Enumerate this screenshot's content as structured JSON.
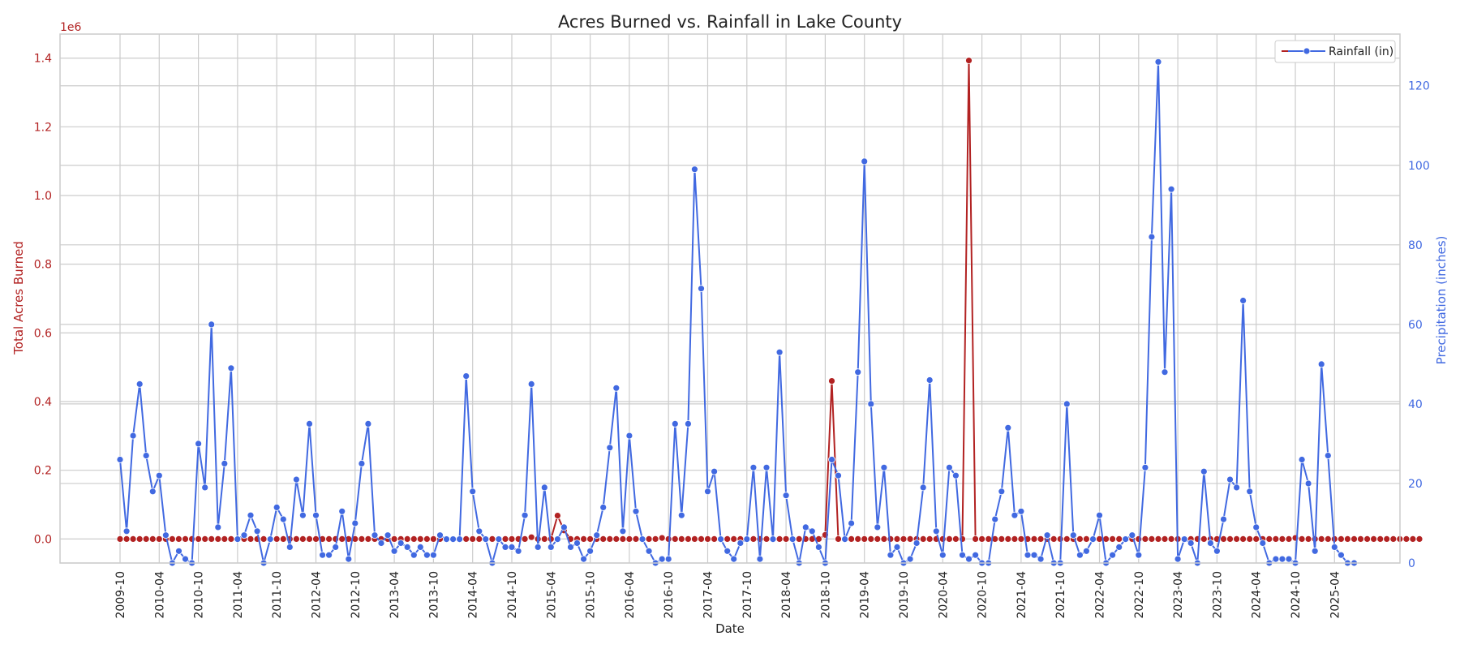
{
  "chart_data": {
    "type": "line",
    "title": "Acres Burned vs. Rainfall in Lake County",
    "xlabel": "Date",
    "ylabel_left": "Total Acres Burned",
    "ylabel_right": "Precipitation (inches)",
    "left_axis_multiplier": "1e6",
    "legend": {
      "placement": "top-right",
      "entries": [
        "Rainfall (in)"
      ]
    },
    "grid": true,
    "x_start": "2009-10",
    "x_ticks": [
      "2009-10",
      "2010-04",
      "2010-10",
      "2011-04",
      "2011-10",
      "2012-04",
      "2012-10",
      "2013-04",
      "2013-10",
      "2014-04",
      "2014-10",
      "2015-04",
      "2015-10",
      "2016-04",
      "2016-10",
      "2017-04",
      "2017-10",
      "2018-04",
      "2018-10",
      "2019-04",
      "2019-10",
      "2020-04",
      "2020-10",
      "2021-04",
      "2021-10",
      "2022-04",
      "2022-10",
      "2023-04",
      "2023-10",
      "2024-04",
      "2024-10",
      "2025-04"
    ],
    "ylim_left": [
      -0.07,
      1.47
    ],
    "yticks_left": [
      0.0,
      0.2,
      0.4,
      0.6,
      0.8,
      1.0,
      1.2,
      1.4
    ],
    "ylim_right": [
      0,
      133
    ],
    "yticks_right": [
      0,
      20,
      40,
      60,
      80,
      100,
      120
    ],
    "colors": {
      "acres": "#b22222",
      "rain": "#4169e1",
      "grid": "#cccccc"
    },
    "series": [
      {
        "axis": "left",
        "color": "#b22222",
        "values": [
          0.0,
          0.0,
          0.0,
          0.0,
          0.0,
          0.0,
          0.0,
          0.0,
          0.0,
          0.0,
          0.0,
          0.0,
          0.0,
          0.0,
          0.0,
          0.0,
          0.0,
          0.0,
          0.0,
          0.0,
          0.0,
          0.0,
          0.0,
          0.0,
          0.0,
          0.0,
          0.0,
          0.0,
          0.0,
          0.0,
          0.0,
          0.0,
          0.0,
          0.0,
          0.0,
          0.0,
          0.0,
          0.0,
          0.0,
          0.0,
          0.0,
          0.0,
          0.0,
          0.0,
          0.0,
          0.0,
          0.0,
          0.0,
          0.0,
          0.0,
          0.0,
          0.0,
          0.0,
          0.0,
          0.0,
          0.0,
          0.0,
          0.0,
          0.0,
          0.0,
          0.0,
          0.0,
          0.0,
          0.0,
          0.0,
          0.0,
          0.0,
          0.0,
          0.0,
          0.0,
          0.0,
          0.0,
          0.0,
          0.0,
          0.0,
          0.0,
          0.0,
          0.0,
          0.0,
          0.0,
          0.0,
          0.0,
          0.0,
          0.0,
          0.0,
          0.0,
          0.0,
          0.0,
          0.0,
          0.0,
          0.0,
          0.0,
          0.0,
          0.0,
          0.0,
          0.0,
          0.0,
          0.0,
          0.0,
          0.0,
          0.0,
          0.0,
          0.0,
          0.0,
          0.0,
          0.0,
          0.0,
          0.0,
          0.0,
          0.0,
          0.0,
          0.0,
          0.0,
          0.0,
          0.0,
          0.0,
          0.0,
          0.0,
          0.0,
          0.0,
          0.0,
          0.0,
          0.0,
          0.0,
          0.0,
          0.0,
          0.0,
          0.0,
          0.0,
          0.0,
          0.0,
          0.0,
          0.0,
          0.0,
          0.0,
          0.0,
          0.0,
          0.0,
          0.0,
          0.0,
          0.0,
          0.0,
          0.0,
          0.0,
          0.0,
          0.0,
          0.0,
          0.0,
          0.0,
          0.0,
          0.0,
          0.0,
          0.0,
          0.0,
          0.0,
          0.0,
          0.0,
          0.0,
          0.0,
          0.0,
          0.0,
          0.0,
          0.0,
          0.0,
          0.0,
          0.0,
          0.0,
          0.0,
          0.0,
          0.0,
          0.0,
          0.0,
          0.0,
          0.0,
          0.0,
          0.0,
          0.0,
          0.0,
          0.0,
          0.0,
          0.0,
          0.0,
          0.0,
          0.0,
          0.0,
          0.0,
          0.0,
          0.0,
          0.0,
          0.0,
          0.0,
          0.0,
          0.0,
          0.0,
          0.0,
          0.0,
          0.0,
          0.0,
          0.0,
          0.0
        ],
        "overrides": [
          [
            63,
            0.005
          ],
          [
            67,
            0.068
          ],
          [
            68,
            0.025
          ],
          [
            83,
            0.003
          ],
          [
            108,
            0.012
          ],
          [
            109,
            0.46
          ],
          [
            130,
            1.393
          ],
          [
            180,
            0.003
          ]
        ]
      },
      {
        "name": "Rainfall (in)",
        "axis": "right",
        "color": "#4169e1",
        "values": [
          26,
          8,
          32,
          45,
          27,
          18,
          22,
          7,
          0,
          3,
          1,
          0,
          30,
          19,
          60,
          9,
          25,
          49,
          6,
          7,
          12,
          8,
          0,
          6,
          14,
          11,
          4,
          21,
          12,
          35,
          12,
          2,
          2,
          4,
          13,
          1,
          10,
          25,
          35,
          7,
          5,
          7,
          3,
          5,
          4,
          2,
          4,
          2,
          2,
          7,
          6,
          6,
          6,
          47,
          18,
          8,
          6,
          0,
          6,
          4,
          4,
          3,
          12,
          45,
          4,
          19,
          4,
          6,
          9,
          4,
          5,
          1,
          3,
          7,
          14,
          29,
          44,
          8,
          32,
          13,
          6,
          3,
          0,
          1,
          1,
          35,
          12,
          35,
          99,
          69,
          18,
          23,
          6,
          3,
          1,
          5,
          6,
          24,
          1,
          24,
          6,
          53,
          17,
          6,
          0,
          9,
          8,
          4,
          0,
          26,
          22,
          6,
          10,
          48,
          101,
          40,
          9,
          24,
          2,
          4,
          0,
          1,
          5,
          19,
          46,
          8,
          2,
          24,
          22,
          2,
          1,
          2,
          0,
          0,
          11,
          18,
          34,
          12,
          13,
          2,
          2,
          1,
          7,
          0,
          0,
          40,
          7,
          2,
          3,
          6,
          12,
          0,
          2,
          4,
          6,
          7,
          2,
          24,
          82,
          126,
          48,
          94,
          1,
          6,
          5,
          0,
          23,
          5,
          3,
          11,
          21,
          19,
          66,
          18,
          9,
          5,
          0,
          1,
          1,
          1,
          0,
          26,
          20,
          3,
          50,
          27,
          4,
          2,
          0,
          0
        ],
        "offset": 0.003
      }
    ]
  }
}
